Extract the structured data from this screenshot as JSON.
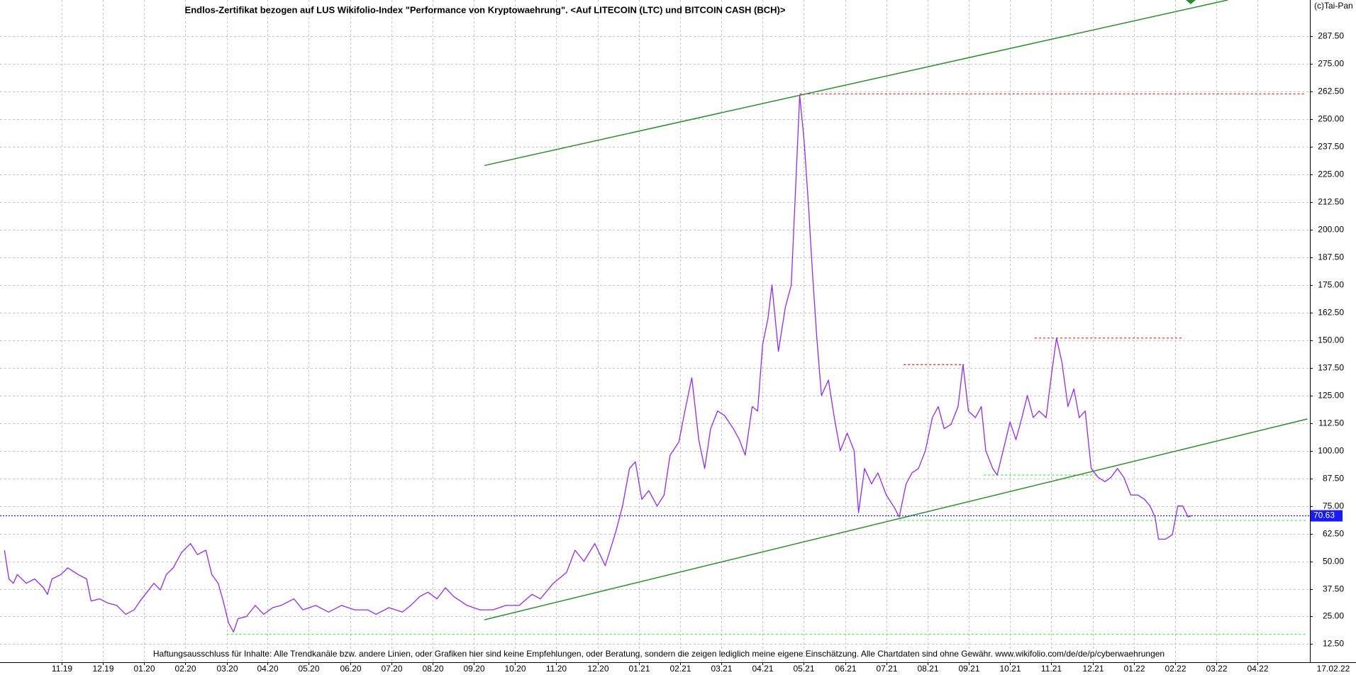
{
  "chart_data": {
    "type": "line",
    "title": "Endlos-Zertifikat bezogen auf LUS Wikifolio-Index \"Performance von Kryptowaehrung\". <Auf LITECOIN (LTC) und BITCOIN CASH (BCH)>",
    "source_label": "(c)Tai-Pan",
    "disclaimer": "Haftungsausschluss für Inhalte: Alle Trendkanäle bzw. andere Linien, oder Grafiken hier sind keine Empfehlungen, oder Beratung, sondern die zeigen lediglich meine eigene Einschätzung. Alle Chartdaten sind ohne Gewähr.  www.wikifolio.com/de/de/p/cyberwaehrungen",
    "date_label": "17.02.22",
    "last_value": 70.63,
    "last_value_color": "#1a1aff",
    "grid": true,
    "xlim": [
      2019.709,
      2022.356
    ],
    "ylim": [
      4.3,
      304
    ],
    "xticks": [
      {
        "value": 2019.833,
        "label": "11.19"
      },
      {
        "value": 2019.917,
        "label": "12.19"
      },
      {
        "value": 2020,
        "label": "01.20"
      },
      {
        "value": 2020.083,
        "label": "02.20"
      },
      {
        "value": 2020.167,
        "label": "03.20"
      },
      {
        "value": 2020.25,
        "label": "04.20"
      },
      {
        "value": 2020.333,
        "label": "05.20"
      },
      {
        "value": 2020.417,
        "label": "06.20"
      },
      {
        "value": 2020.5,
        "label": "07.20"
      },
      {
        "value": 2020.583,
        "label": "08.20"
      },
      {
        "value": 2020.667,
        "label": "09.20"
      },
      {
        "value": 2020.75,
        "label": "10.20"
      },
      {
        "value": 2020.833,
        "label": "11.20"
      },
      {
        "value": 2020.917,
        "label": "12.20"
      },
      {
        "value": 2021,
        "label": "01.21"
      },
      {
        "value": 2021.083,
        "label": "02.21"
      },
      {
        "value": 2021.167,
        "label": "03.21"
      },
      {
        "value": 2021.25,
        "label": "04.21"
      },
      {
        "value": 2021.333,
        "label": "05.21"
      },
      {
        "value": 2021.417,
        "label": "06.21"
      },
      {
        "value": 2021.5,
        "label": "07.21"
      },
      {
        "value": 2021.583,
        "label": "08.21"
      },
      {
        "value": 2021.667,
        "label": "09.21"
      },
      {
        "value": 2021.75,
        "label": "10.21"
      },
      {
        "value": 2021.833,
        "label": "11.21"
      },
      {
        "value": 2021.917,
        "label": "12.21"
      },
      {
        "value": 2022,
        "label": "01.22"
      },
      {
        "value": 2022.083,
        "label": "02.22"
      },
      {
        "value": 2022.167,
        "label": "03.22"
      },
      {
        "value": 2022.25,
        "label": "04.22"
      }
    ],
    "yticks": [
      {
        "value": 12.5,
        "label": "12.50"
      },
      {
        "value": 25,
        "label": "25.00"
      },
      {
        "value": 37.5,
        "label": "37.50"
      },
      {
        "value": 50,
        "label": "50.00"
      },
      {
        "value": 62.5,
        "label": "62.50"
      },
      {
        "value": 75,
        "label": "75.00"
      },
      {
        "value": 87.5,
        "label": "87.50"
      },
      {
        "value": 100,
        "label": "100.00"
      },
      {
        "value": 112.5,
        "label": "112.50"
      },
      {
        "value": 125,
        "label": "125.00"
      },
      {
        "value": 137.5,
        "label": "137.50"
      },
      {
        "value": 150,
        "label": "150.00"
      },
      {
        "value": 162.5,
        "label": "162.50"
      },
      {
        "value": 175,
        "label": "175.00"
      },
      {
        "value": 187.5,
        "label": "187.50"
      },
      {
        "value": 200,
        "label": "200.00"
      },
      {
        "value": 212.5,
        "label": "212.50"
      },
      {
        "value": 225,
        "label": "225.00"
      },
      {
        "value": 237.5,
        "label": "237.50"
      },
      {
        "value": 250,
        "label": "250.00"
      },
      {
        "value": 262.5,
        "label": "262.50"
      },
      {
        "value": 275,
        "label": "275.00"
      },
      {
        "value": 287.5,
        "label": "287.50"
      }
    ],
    "series": [
      {
        "color": "#8f2cf0",
        "x": [
          2019.718,
          2019.727,
          2019.736,
          2019.744,
          2019.762,
          2019.779,
          2019.797,
          2019.805,
          2019.814,
          2019.832,
          2019.846,
          2019.867,
          2019.884,
          2019.893,
          2019.91,
          2019.928,
          2019.945,
          2019.963,
          2019.98,
          2019.992,
          2020.006,
          2020.02,
          2020.033,
          2020.045,
          2020.059,
          2020.076,
          2020.094,
          2020.108,
          2020.125,
          2020.137,
          2020.15,
          2020.16,
          2020.171,
          2020.181,
          2020.19,
          2020.207,
          2020.225,
          2020.242,
          2020.26,
          2020.277,
          2020.303,
          2020.321,
          2020.347,
          2020.373,
          2020.399,
          2020.426,
          2020.452,
          2020.469,
          2020.495,
          2020.522,
          2020.539,
          2020.557,
          2020.574,
          2020.592,
          2020.609,
          2020.626,
          2020.653,
          2020.679,
          2020.705,
          2020.731,
          2020.758,
          2020.784,
          2020.801,
          2020.827,
          2020.854,
          2020.871,
          2020.889,
          2020.911,
          2020.932,
          2020.953,
          2020.967,
          2020.981,
          2020.993,
          2021.006,
          2021.02,
          2021.037,
          2021.051,
          2021.063,
          2021.081,
          2021.093,
          2021.107,
          2021.121,
          2021.133,
          2021.145,
          2021.159,
          2021.173,
          2021.191,
          2021.203,
          2021.215,
          2021.229,
          2021.24,
          2021.25,
          2021.261,
          2021.269,
          2021.282,
          2021.296,
          2021.308,
          2021.317,
          2021.325,
          2021.334,
          2021.343,
          2021.351,
          2021.36,
          2021.369,
          2021.383,
          2021.395,
          2021.407,
          2021.421,
          2021.435,
          2021.444,
          2021.456,
          2021.47,
          2021.483,
          2021.5,
          2021.517,
          2021.526,
          2021.54,
          2021.552,
          2021.565,
          2021.579,
          2021.593,
          2021.605,
          2021.617,
          2021.631,
          2021.645,
          2021.655,
          2021.666,
          2021.68,
          2021.692,
          2021.701,
          2021.715,
          2021.724,
          2021.736,
          2021.75,
          2021.762,
          2021.774,
          2021.785,
          2021.797,
          2021.809,
          2021.823,
          2021.834,
          2021.844,
          2021.855,
          2021.867,
          2021.879,
          2021.89,
          2021.902,
          2021.914,
          2021.928,
          2021.942,
          2021.954,
          2021.967,
          2021.98,
          2021.994,
          2022.008,
          2022.022,
          2022.033,
          2022.043,
          2022.05,
          2022.064,
          2022.078,
          2022.089,
          2022.099,
          2022.11,
          2022.117
        ],
        "values": [
          55,
          42,
          40,
          44,
          40,
          42,
          38,
          35,
          42,
          44,
          47,
          44,
          42,
          32,
          33,
          31,
          30,
          26,
          28,
          32,
          36,
          40,
          37,
          44,
          47,
          54,
          58,
          53,
          55,
          44,
          40,
          32,
          22,
          18,
          24,
          25,
          30,
          26,
          29,
          30,
          33,
          28,
          30,
          27,
          30,
          28,
          28,
          26,
          29,
          27,
          30,
          34,
          36,
          33,
          38,
          34,
          30,
          28,
          28,
          30,
          30,
          35,
          33,
          40,
          45,
          55,
          50,
          58,
          48,
          63,
          75,
          92,
          95,
          78,
          82,
          75,
          80,
          98,
          104,
          118,
          133,
          105,
          92,
          110,
          118,
          116,
          110,
          105,
          98,
          120,
          118,
          148,
          160,
          175,
          145,
          165,
          175,
          220,
          261,
          240,
          210,
          180,
          150,
          125,
          132,
          115,
          100,
          108,
          100,
          72,
          92,
          85,
          90,
          80,
          74,
          70,
          85,
          90,
          92,
          100,
          115,
          120,
          110,
          112,
          120,
          139,
          118,
          115,
          120,
          100,
          92,
          89,
          100,
          113,
          105,
          115,
          125,
          115,
          118,
          115,
          135,
          151,
          140,
          120,
          128,
          115,
          118,
          92,
          88,
          86,
          88,
          92,
          88,
          80,
          80,
          78,
          75,
          70,
          60,
          60,
          62,
          75,
          75,
          70,
          70.63
        ]
      }
    ],
    "trendlines": [
      {
        "color": "#2e8b2e",
        "x": [
          2020.688,
          2022.19
        ],
        "y": [
          229.1,
          304
        ]
      },
      {
        "color": "#2e8b2e",
        "x": [
          2020.688,
          2022.351
        ],
        "y": [
          23.5,
          114.4
        ]
      }
    ],
    "levels": [
      {
        "color": "#e02020",
        "y": 261.5,
        "x": [
          2021.325,
          2022.347
        ]
      },
      {
        "color": "#e02020",
        "y": 139,
        "x": [
          2021.535,
          2021.657
        ]
      },
      {
        "color": "#e02020",
        "y": 151,
        "x": [
          2021.8,
          2022.098
        ]
      },
      {
        "color": "#44ee44",
        "y": 17,
        "x": [
          2020.167,
          2022.347
        ]
      },
      {
        "color": "#44ee44",
        "y": 89,
        "x": [
          2021.697,
          2021.928
        ]
      },
      {
        "color": "#44ee44",
        "y": 68.5,
        "x": [
          2021.526,
          2022.347
        ]
      }
    ]
  }
}
